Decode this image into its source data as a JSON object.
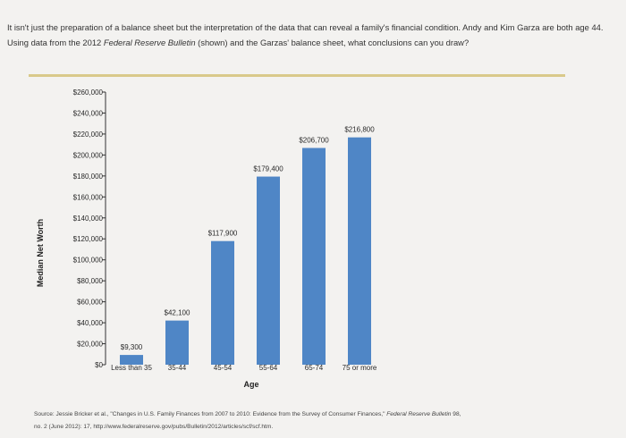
{
  "question": {
    "part1": "It isn't just the preparation of a balance sheet but the interpretation of the data that can reveal a family's financial condition. Andy and Kim Garza are both age 44. Using data from the 2012 ",
    "italic": "Federal Reserve Bulletin",
    "part2": " (shown) and the Garzas' balance sheet, what conclusions can you draw?"
  },
  "chart_data": {
    "type": "bar",
    "categories": [
      "Less than 35",
      "35-44",
      "45-54",
      "55-64",
      "65-74",
      "75 or more"
    ],
    "values": [
      9300,
      42100,
      117900,
      179400,
      206700,
      216800
    ],
    "data_labels": [
      "$9,300",
      "$42,100",
      "$117,900",
      "$179,400",
      "$206,700",
      "$216,800"
    ],
    "ylabel": "Median Net Worth",
    "xlabel": "Age",
    "ylim": [
      0,
      260000
    ],
    "y_ticks": [
      0,
      20000,
      40000,
      60000,
      80000,
      100000,
      120000,
      140000,
      160000,
      180000,
      200000,
      220000,
      240000,
      260000
    ],
    "y_tick_labels": [
      "$0",
      "$20,000",
      "$40,000",
      "$60,000",
      "$80,000",
      "$100,000",
      "$120,000",
      "$140,000",
      "$160,000",
      "$180,000",
      "$200,000",
      "$220,000",
      "$240,000",
      "$260,000"
    ],
    "bar_color": "#4f86c6",
    "grid": false
  },
  "source": {
    "part1": "Source: Jessie Bricker et al., \"Changes in U.S. Family Finances from 2007 to 2010: Evidence from the Survey of Consumer Finances,\" ",
    "italic": "Federal Reserve Bulletin",
    "part2": " 98,",
    "line2": "no. 2 (June 2012): 17, http://www.federalreserve.gov/pubs/Bulletin/2012/articles/scf/scf.htm."
  }
}
